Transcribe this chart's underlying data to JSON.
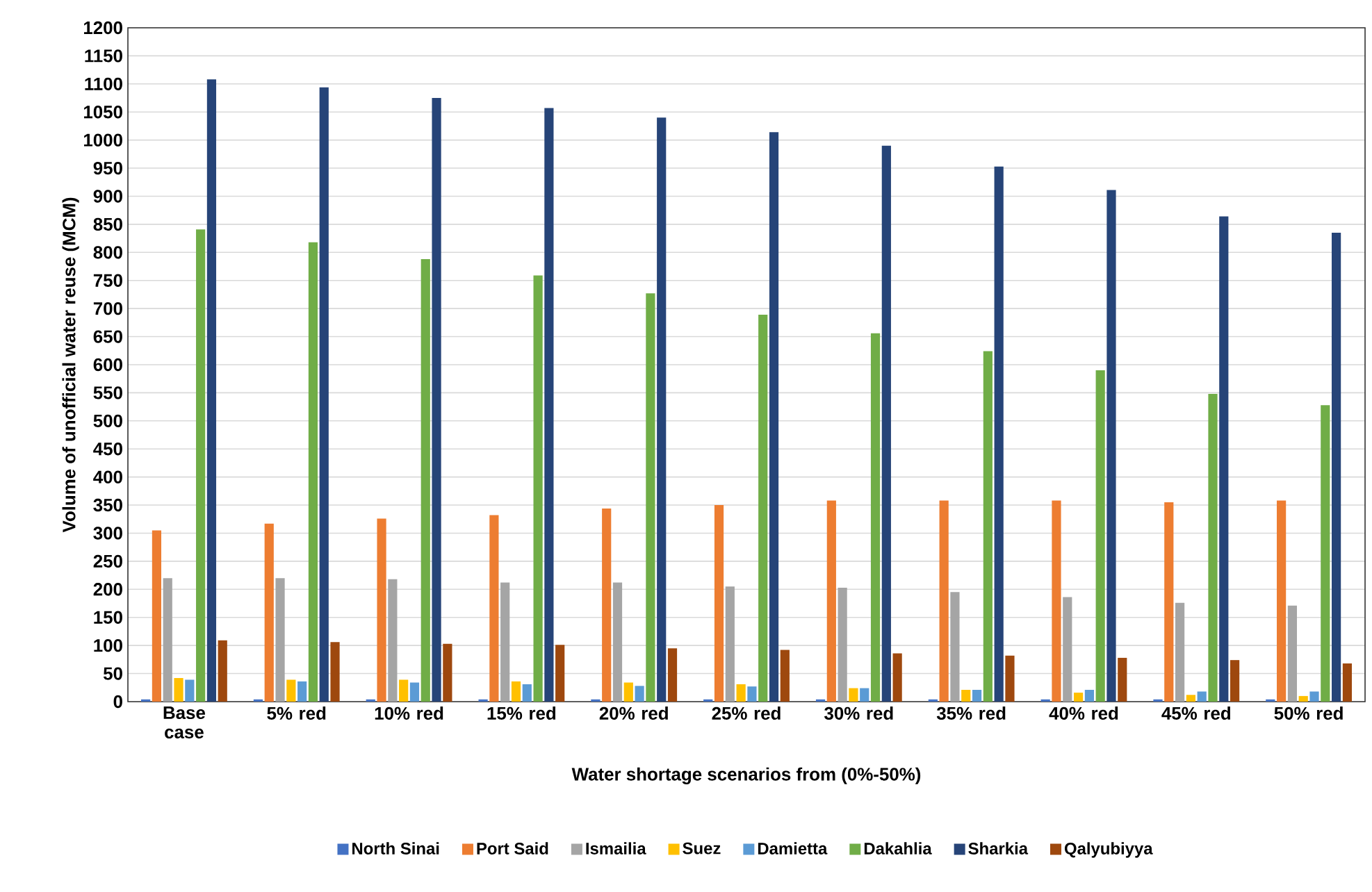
{
  "chart_data": {
    "type": "bar",
    "xlabel": "Water shortage scenarios from (0%-50%)",
    "ylabel": "Volume of unofficial water reuse (MCM)",
    "categories": [
      "Base case",
      "5% red",
      "10% red",
      "15% red",
      "20% red",
      "25% red",
      "30% red",
      "35% red",
      "40% red",
      "45% red",
      "50% red"
    ],
    "series": [
      {
        "name": "North Sinai",
        "color": "#4472c4",
        "values": [
          4,
          4,
          4,
          4,
          4,
          4,
          4,
          4,
          4,
          4,
          4
        ]
      },
      {
        "name": "Port Said",
        "color": "#ed7d31",
        "values": [
          305,
          317,
          326,
          332,
          344,
          350,
          358,
          358,
          358,
          355,
          358
        ]
      },
      {
        "name": "Ismailia",
        "color": "#a5a5a5",
        "values": [
          220,
          220,
          218,
          212,
          212,
          205,
          203,
          195,
          186,
          176,
          171
        ]
      },
      {
        "name": "Suez",
        "color": "#ffc000",
        "values": [
          42,
          39,
          39,
          36,
          34,
          31,
          24,
          21,
          16,
          12,
          10
        ]
      },
      {
        "name": "Damietta",
        "color": "#5b9bd5",
        "values": [
          39,
          36,
          34,
          31,
          28,
          27,
          24,
          21,
          21,
          18,
          18
        ]
      },
      {
        "name": "Dakahlia",
        "color": "#70ad47",
        "values": [
          841,
          818,
          788,
          759,
          727,
          689,
          656,
          624,
          590,
          548,
          528
        ]
      },
      {
        "name": "Sharkia",
        "color": "#264478",
        "values": [
          1108,
          1094,
          1075,
          1057,
          1040,
          1014,
          990,
          953,
          911,
          864,
          835
        ]
      },
      {
        "name": "Qalyubiyya",
        "color": "#9e480e",
        "values": [
          109,
          106,
          103,
          101,
          95,
          92,
          86,
          82,
          78,
          74,
          68
        ]
      }
    ],
    "ylim": [
      0,
      1200
    ],
    "yticks": [
      0,
      50,
      100,
      150,
      200,
      250,
      300,
      350,
      400,
      450,
      500,
      550,
      600,
      650,
      700,
      750,
      800,
      850,
      900,
      950,
      1000,
      1050,
      1100,
      1150,
      1200
    ],
    "grid": "y",
    "legend": "bottom"
  }
}
